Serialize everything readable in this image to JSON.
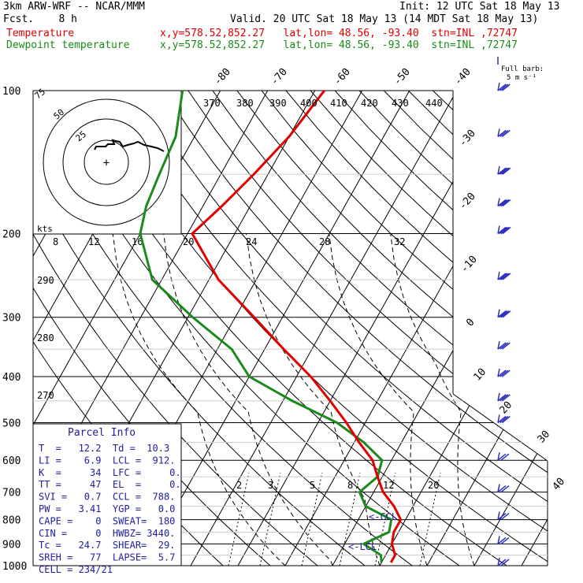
{
  "header": {
    "line1_left": "3km ARW-WRF -- NCAR/MMM",
    "line1_right": "Init: 12 UTC Sat 18 May 13",
    "line2_left": "Fcst.    8 h",
    "line2_right": "Valid. 20 UTC Sat 18 May 13 (14 MDT Sat 18 May 13)",
    "temp_label": "Temperature",
    "temp_info": "x,y=578.52,852.27   lat,lon= 48.56, -93.40  stn=INL ,72747",
    "dew_label": "Dewpoint temperature",
    "dew_info": "x,y=578.52,852.27   lat,lon= 48.56, -93.40  stn=INL ,72747",
    "full_barb_label": "Full barb:",
    "full_barb_unit": "5 m s⁻¹"
  },
  "colors": {
    "temperature": "#e00000",
    "dewpoint": "#1a8a1a",
    "wind_barbs": "#3030c0",
    "hodograph": "#000000",
    "parcel_info": "#2020a0"
  },
  "chart_data": {
    "type": "line",
    "pressure_levels": [
      100,
      200,
      300,
      400,
      500,
      600,
      700,
      800,
      900,
      1000
    ],
    "temp_isotherm_labels": [
      "-80",
      "-70",
      "-60",
      "-50",
      "-40",
      "-30",
      "-20",
      "-10",
      "0",
      "10",
      "20",
      "30",
      "40"
    ],
    "theta_labels": [
      "370",
      "380",
      "390",
      "400",
      "410",
      "420",
      "430",
      "440"
    ],
    "theta_left_labels": [
      "290",
      "280",
      "270"
    ],
    "mixing_ratio_labels": [
      "2",
      "3",
      "5",
      "8",
      "12",
      "20"
    ],
    "wind_speed_labels": [
      "8",
      "12",
      "16",
      "20",
      "24",
      "28",
      "32"
    ],
    "kts_label": "kts",
    "lcl_labels": [
      "<-CCL",
      "<-LCL"
    ],
    "series": [
      {
        "name": "Temperature",
        "points": [
          {
            "p": 100,
            "t": -58
          },
          {
            "p": 125,
            "t": -60
          },
          {
            "p": 150,
            "t": -63
          },
          {
            "p": 175,
            "t": -66
          },
          {
            "p": 200,
            "t": -69
          },
          {
            "p": 250,
            "t": -58
          },
          {
            "p": 300,
            "t": -46
          },
          {
            "p": 350,
            "t": -36
          },
          {
            "p": 400,
            "t": -27
          },
          {
            "p": 450,
            "t": -20
          },
          {
            "p": 500,
            "t": -14
          },
          {
            "p": 550,
            "t": -9
          },
          {
            "p": 600,
            "t": -4
          },
          {
            "p": 650,
            "t": -1
          },
          {
            "p": 700,
            "t": 2
          },
          {
            "p": 750,
            "t": 6
          },
          {
            "p": 800,
            "t": 9
          },
          {
            "p": 850,
            "t": 9
          },
          {
            "p": 900,
            "t": 10
          },
          {
            "p": 950,
            "t": 12
          },
          {
            "p": 985,
            "t": 12
          }
        ]
      },
      {
        "name": "Dewpoint temperature",
        "points": [
          {
            "p": 100,
            "t": -88
          },
          {
            "p": 125,
            "t": -84
          },
          {
            "p": 150,
            "t": -83
          },
          {
            "p": 175,
            "t": -82
          },
          {
            "p": 200,
            "t": -80
          },
          {
            "p": 250,
            "t": -72
          },
          {
            "p": 300,
            "t": -59
          },
          {
            "p": 350,
            "t": -47
          },
          {
            "p": 400,
            "t": -40
          },
          {
            "p": 450,
            "t": -28
          },
          {
            "p": 500,
            "t": -16
          },
          {
            "p": 550,
            "t": -8
          },
          {
            "p": 600,
            "t": -2
          },
          {
            "p": 650,
            "t": -1
          },
          {
            "p": 700,
            "t": -3
          },
          {
            "p": 750,
            "t": 0
          },
          {
            "p": 800,
            "t": 7
          },
          {
            "p": 850,
            "t": 8
          },
          {
            "p": 900,
            "t": 4
          },
          {
            "p": 950,
            "t": 9
          },
          {
            "p": 985,
            "t": 10
          }
        ]
      }
    ],
    "wind_barbs": [
      {
        "p": 100,
        "speed_ms": 15
      },
      {
        "p": 125,
        "speed_ms": 15
      },
      {
        "p": 150,
        "speed_ms": 20
      },
      {
        "p": 175,
        "speed_ms": 20
      },
      {
        "p": 200,
        "speed_ms": 20
      },
      {
        "p": 250,
        "speed_ms": 20
      },
      {
        "p": 300,
        "speed_ms": 20
      },
      {
        "p": 350,
        "speed_ms": 15
      },
      {
        "p": 400,
        "speed_ms": 15
      },
      {
        "p": 450,
        "speed_ms": 15
      },
      {
        "p": 500,
        "speed_ms": 15
      },
      {
        "p": 600,
        "speed_ms": 10
      },
      {
        "p": 700,
        "speed_ms": 10
      },
      {
        "p": 800,
        "speed_ms": 10
      },
      {
        "p": 900,
        "speed_ms": 10
      },
      {
        "p": 1000,
        "speed_ms": 10
      }
    ],
    "hodograph": {
      "ring_labels": [
        "75",
        "50",
        "25"
      ]
    }
  },
  "parcel_info": {
    "title": "Parcel Info",
    "rows": [
      "T  =   12.2  Td =  10.3",
      "LI =    6.9  LCL =  912.",
      "K  =     34  LFC =     0.",
      "TT =     47  EL  =     0.",
      "SVI =   0.7  CCL =  788.",
      "PW =   3.41  YGP =   0.0",
      "CAPE =    0  SWEAT=  180",
      "CIN =     0  HWBZ= 3440.",
      "Tc =   24.7  SHEAR=  29.",
      "SREH =   77  LAPSE=  5.7",
      "CELL = 234/21"
    ]
  }
}
